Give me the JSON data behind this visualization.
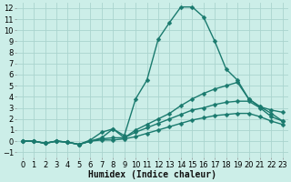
{
  "xlabel": "Humidex (Indice chaleur)",
  "background_color": "#cceee8",
  "grid_color": "#aad4ce",
  "line_color": "#1a7a6e",
  "xlim": [
    -0.5,
    23.5
  ],
  "ylim": [
    -1.5,
    12.5
  ],
  "xticks": [
    0,
    1,
    2,
    3,
    4,
    5,
    6,
    7,
    8,
    9,
    10,
    11,
    12,
    13,
    14,
    15,
    16,
    17,
    18,
    19,
    20,
    21,
    22,
    23
  ],
  "yticks": [
    -1,
    0,
    1,
    2,
    3,
    4,
    5,
    6,
    7,
    8,
    9,
    10,
    11,
    12
  ],
  "series": [
    [
      0.0,
      0.0,
      -0.2,
      0.0,
      -0.1,
      -0.3,
      0.1,
      0.8,
      1.1,
      0.5,
      3.8,
      5.5,
      9.2,
      10.7,
      12.1,
      12.1,
      11.2,
      9.0,
      6.5,
      5.5,
      3.8,
      3.1,
      2.8,
      2.6
    ],
    [
      0.0,
      0.0,
      -0.2,
      0.0,
      -0.1,
      -0.3,
      0.0,
      0.3,
      1.1,
      0.3,
      1.0,
      1.5,
      2.0,
      2.5,
      3.2,
      3.8,
      4.3,
      4.7,
      5.0,
      5.3,
      3.8,
      3.1,
      2.5,
      1.8
    ],
    [
      0.0,
      0.0,
      -0.2,
      0.0,
      -0.1,
      -0.3,
      0.0,
      0.2,
      0.3,
      0.3,
      0.8,
      1.2,
      1.6,
      2.0,
      2.4,
      2.8,
      3.0,
      3.3,
      3.5,
      3.6,
      3.6,
      3.0,
      2.2,
      1.8
    ],
    [
      0.0,
      0.0,
      -0.2,
      0.0,
      -0.1,
      -0.3,
      0.0,
      0.1,
      0.1,
      0.2,
      0.4,
      0.7,
      1.0,
      1.3,
      1.6,
      1.9,
      2.1,
      2.3,
      2.4,
      2.5,
      2.5,
      2.2,
      1.8,
      1.5
    ]
  ],
  "markersize": 2.5,
  "linewidth": 1.0,
  "fontsize_ticks": 6,
  "fontsize_label": 7
}
